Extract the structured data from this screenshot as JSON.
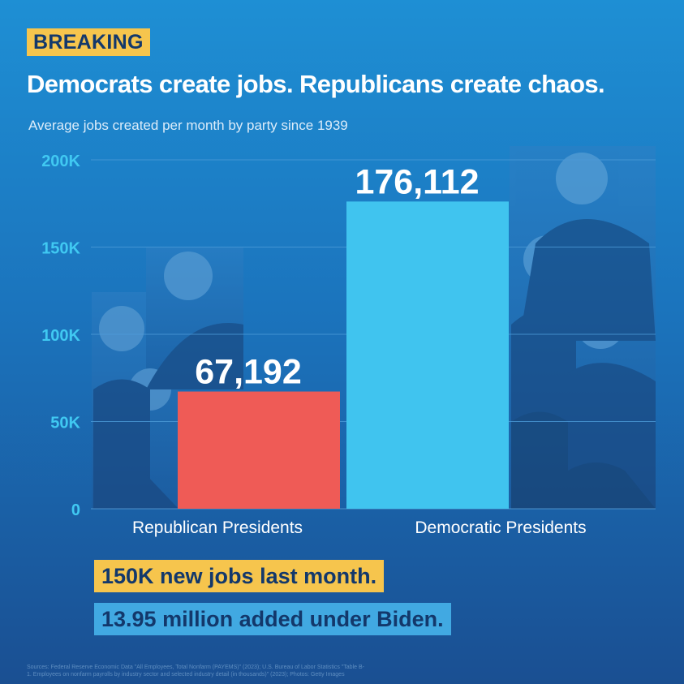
{
  "badge": "BREAKING",
  "headline": "Democrats create jobs. Republicans create chaos.",
  "subtitle": "Average jobs created per month by party since 1939",
  "highlights": {
    "line1": "150K new jobs last month.",
    "line2": "13.95 million added under Biden."
  },
  "sources": "Sources: Federal Reserve Economic Data \"All Employees, Total Nonfarm (PAYEMS)\" (2023); U.S. Bureau of Labor Statistics \"Table B-1. Employees on nonfarm payrolls by industry sector and selected industry detail (in thousands)\" (2023); Photos: Getty Images",
  "colors": {
    "republican": "#ef5b56",
    "democratic": "#40c4ef",
    "tick": "#40c9f2",
    "yellow": "#f6c54d",
    "navy": "#13386b"
  },
  "chart_data": {
    "type": "bar",
    "title": "Democrats create jobs. Republicans create chaos.",
    "subtitle": "Average jobs created per month by party since 1939",
    "categories": [
      "Republican Presidents",
      "Democratic Presidents"
    ],
    "values": [
      67192,
      176112
    ],
    "value_labels": [
      "67,192",
      "176,112"
    ],
    "ylim": [
      0,
      200000
    ],
    "yticks": [
      0,
      50000,
      100000,
      150000,
      200000
    ],
    "ytick_labels": [
      "0",
      "50K",
      "100K",
      "150K",
      "200K"
    ],
    "grid": true,
    "xlabel": "",
    "ylabel": ""
  }
}
